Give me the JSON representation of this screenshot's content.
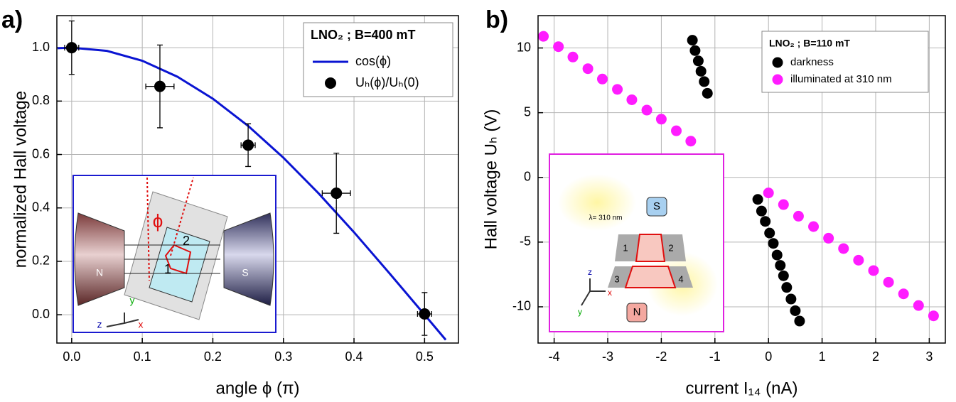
{
  "chart_data": [
    {
      "type": "scatter",
      "panel_label": "a)",
      "x_label": "angle ϕ (π)",
      "y_label": "normalized Hall voltage",
      "xlim": [
        -0.021,
        0.548
      ],
      "ylim": [
        -0.106,
        1.12
      ],
      "xticks": [
        {
          "value": 0,
          "label": "0.0"
        },
        0.1,
        0.2,
        0.3,
        0.4,
        0.5
      ],
      "yticks": [
        {
          "value": 0,
          "label": "0.0"
        },
        0.2,
        0.4,
        0.6,
        0.8,
        {
          "value": 1,
          "label": "1.0"
        }
      ],
      "grid": true,
      "legend_title": "LNO₂ ; B=400 mT",
      "legend": "upper right",
      "series": [
        {
          "name": "cos(ϕ)",
          "type": "line",
          "color": "#0a14d2",
          "x": [
            -0.02,
            0,
            0.05,
            0.1,
            0.15,
            0.2,
            0.25,
            0.3,
            0.35,
            0.4,
            0.45,
            0.5,
            0.53
          ],
          "values": [
            0.998,
            1,
            0.988,
            0.951,
            0.891,
            0.809,
            0.707,
            0.588,
            0.454,
            0.309,
            0.156,
            0,
            -0.094
          ]
        },
        {
          "name": "Uₕ(ϕ)/Uₕ(0)",
          "type": "scatter",
          "color": "#000000",
          "x": [
            0,
            0.125,
            0.25,
            0.375,
            0.5
          ],
          "values": [
            1,
            0.855,
            0.635,
            0.455,
            0.003
          ],
          "xerr": [
            0.01,
            0.02,
            0.01,
            0.02,
            0.01
          ],
          "yerr": [
            0.1,
            0.155,
            0.08,
            0.15,
            0.08
          ]
        }
      ],
      "annotations": [
        "N",
        "S",
        "ϕ",
        "1",
        "2",
        "x",
        "y",
        "z"
      ]
    },
    {
      "type": "scatter",
      "panel_label": "b)",
      "x_label": "current I₁₄ (nA)",
      "y_label": "Hall voltage Uₕ (V)",
      "xlim": [
        -4.3,
        3.3
      ],
      "ylim": [
        -12.8,
        12.5
      ],
      "xticks": [
        -4,
        -3,
        -2,
        -1,
        0,
        1,
        2,
        3
      ],
      "yticks": [
        -10,
        -5,
        0,
        5,
        10
      ],
      "grid": true,
      "legend_title": "LNO₂ ; B=110 mT",
      "legend": "upper right",
      "series": [
        {
          "name": "darkness",
          "type": "scatter",
          "color": "#000000",
          "x": [
            -1.42,
            -1.37,
            -1.31,
            -1.26,
            -1.2,
            -1.14,
            -0.2,
            -0.13,
            -0.06,
            0.02,
            0.09,
            0.16,
            0.22,
            0.28,
            0.34,
            0.42,
            0.5,
            0.58
          ],
          "values": [
            10.6,
            9.8,
            9.0,
            8.2,
            7.4,
            6.5,
            -1.7,
            -2.6,
            -3.4,
            -4.3,
            -5.1,
            -6.0,
            -6.8,
            -7.6,
            -8.5,
            -9.4,
            -10.3,
            -11.1
          ]
        },
        {
          "name": "illuminated at 310 nm",
          "type": "scatter",
          "color": "#ff1cff",
          "x": [
            -4.2,
            -3.92,
            -3.65,
            -3.37,
            -3.1,
            -2.82,
            -2.55,
            -2.27,
            -2.0,
            -1.72,
            -1.45,
            0,
            0.28,
            0.56,
            0.84,
            1.12,
            1.4,
            1.68,
            1.96,
            2.24,
            2.52,
            2.8,
            3.08
          ],
          "values": [
            10.9,
            10.1,
            9.3,
            8.4,
            7.6,
            6.8,
            6.0,
            5.2,
            4.5,
            3.6,
            2.8,
            -1.2,
            -2.1,
            -3.0,
            -3.8,
            -4.7,
            -5.5,
            -6.4,
            -7.2,
            -8.1,
            -9.0,
            -9.9,
            -10.7
          ]
        }
      ],
      "annotations": [
        "λ= 310 nm",
        "S",
        "N",
        "1",
        "2",
        "3",
        "4",
        "x",
        "y",
        "z"
      ]
    }
  ]
}
